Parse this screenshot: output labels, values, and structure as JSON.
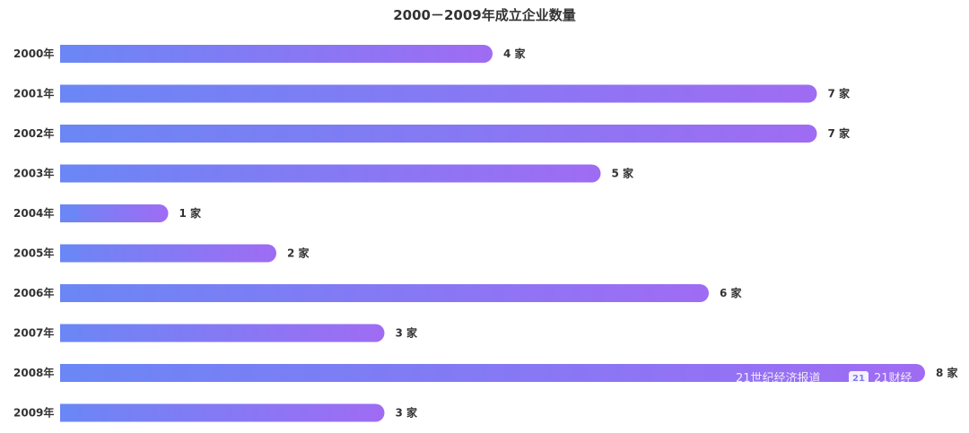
{
  "chart_data": {
    "type": "bar",
    "orientation": "horizontal",
    "title": "2000－2009年成立企业数量",
    "categories": [
      "2000年",
      "2001年",
      "2002年",
      "2003年",
      "2004年",
      "2005年",
      "2006年",
      "2007年",
      "2008年",
      "2009年"
    ],
    "values": [
      4,
      7,
      7,
      5,
      1,
      2,
      6,
      3,
      8,
      3
    ],
    "value_unit": "家",
    "data_labels": [
      "4 家",
      "7 家",
      "7 家",
      "5 家",
      "1 家",
      "2 家",
      "6 家",
      "3 家",
      "8 家",
      "3 家"
    ],
    "xlim": [
      0,
      8
    ],
    "grid": false,
    "legend": "none",
    "bar_gradient": [
      "#6b86f5",
      "#9f6cf3"
    ]
  },
  "watermark": {
    "text": "21世纪经济报道",
    "badge": "21",
    "brand": "21财经"
  }
}
